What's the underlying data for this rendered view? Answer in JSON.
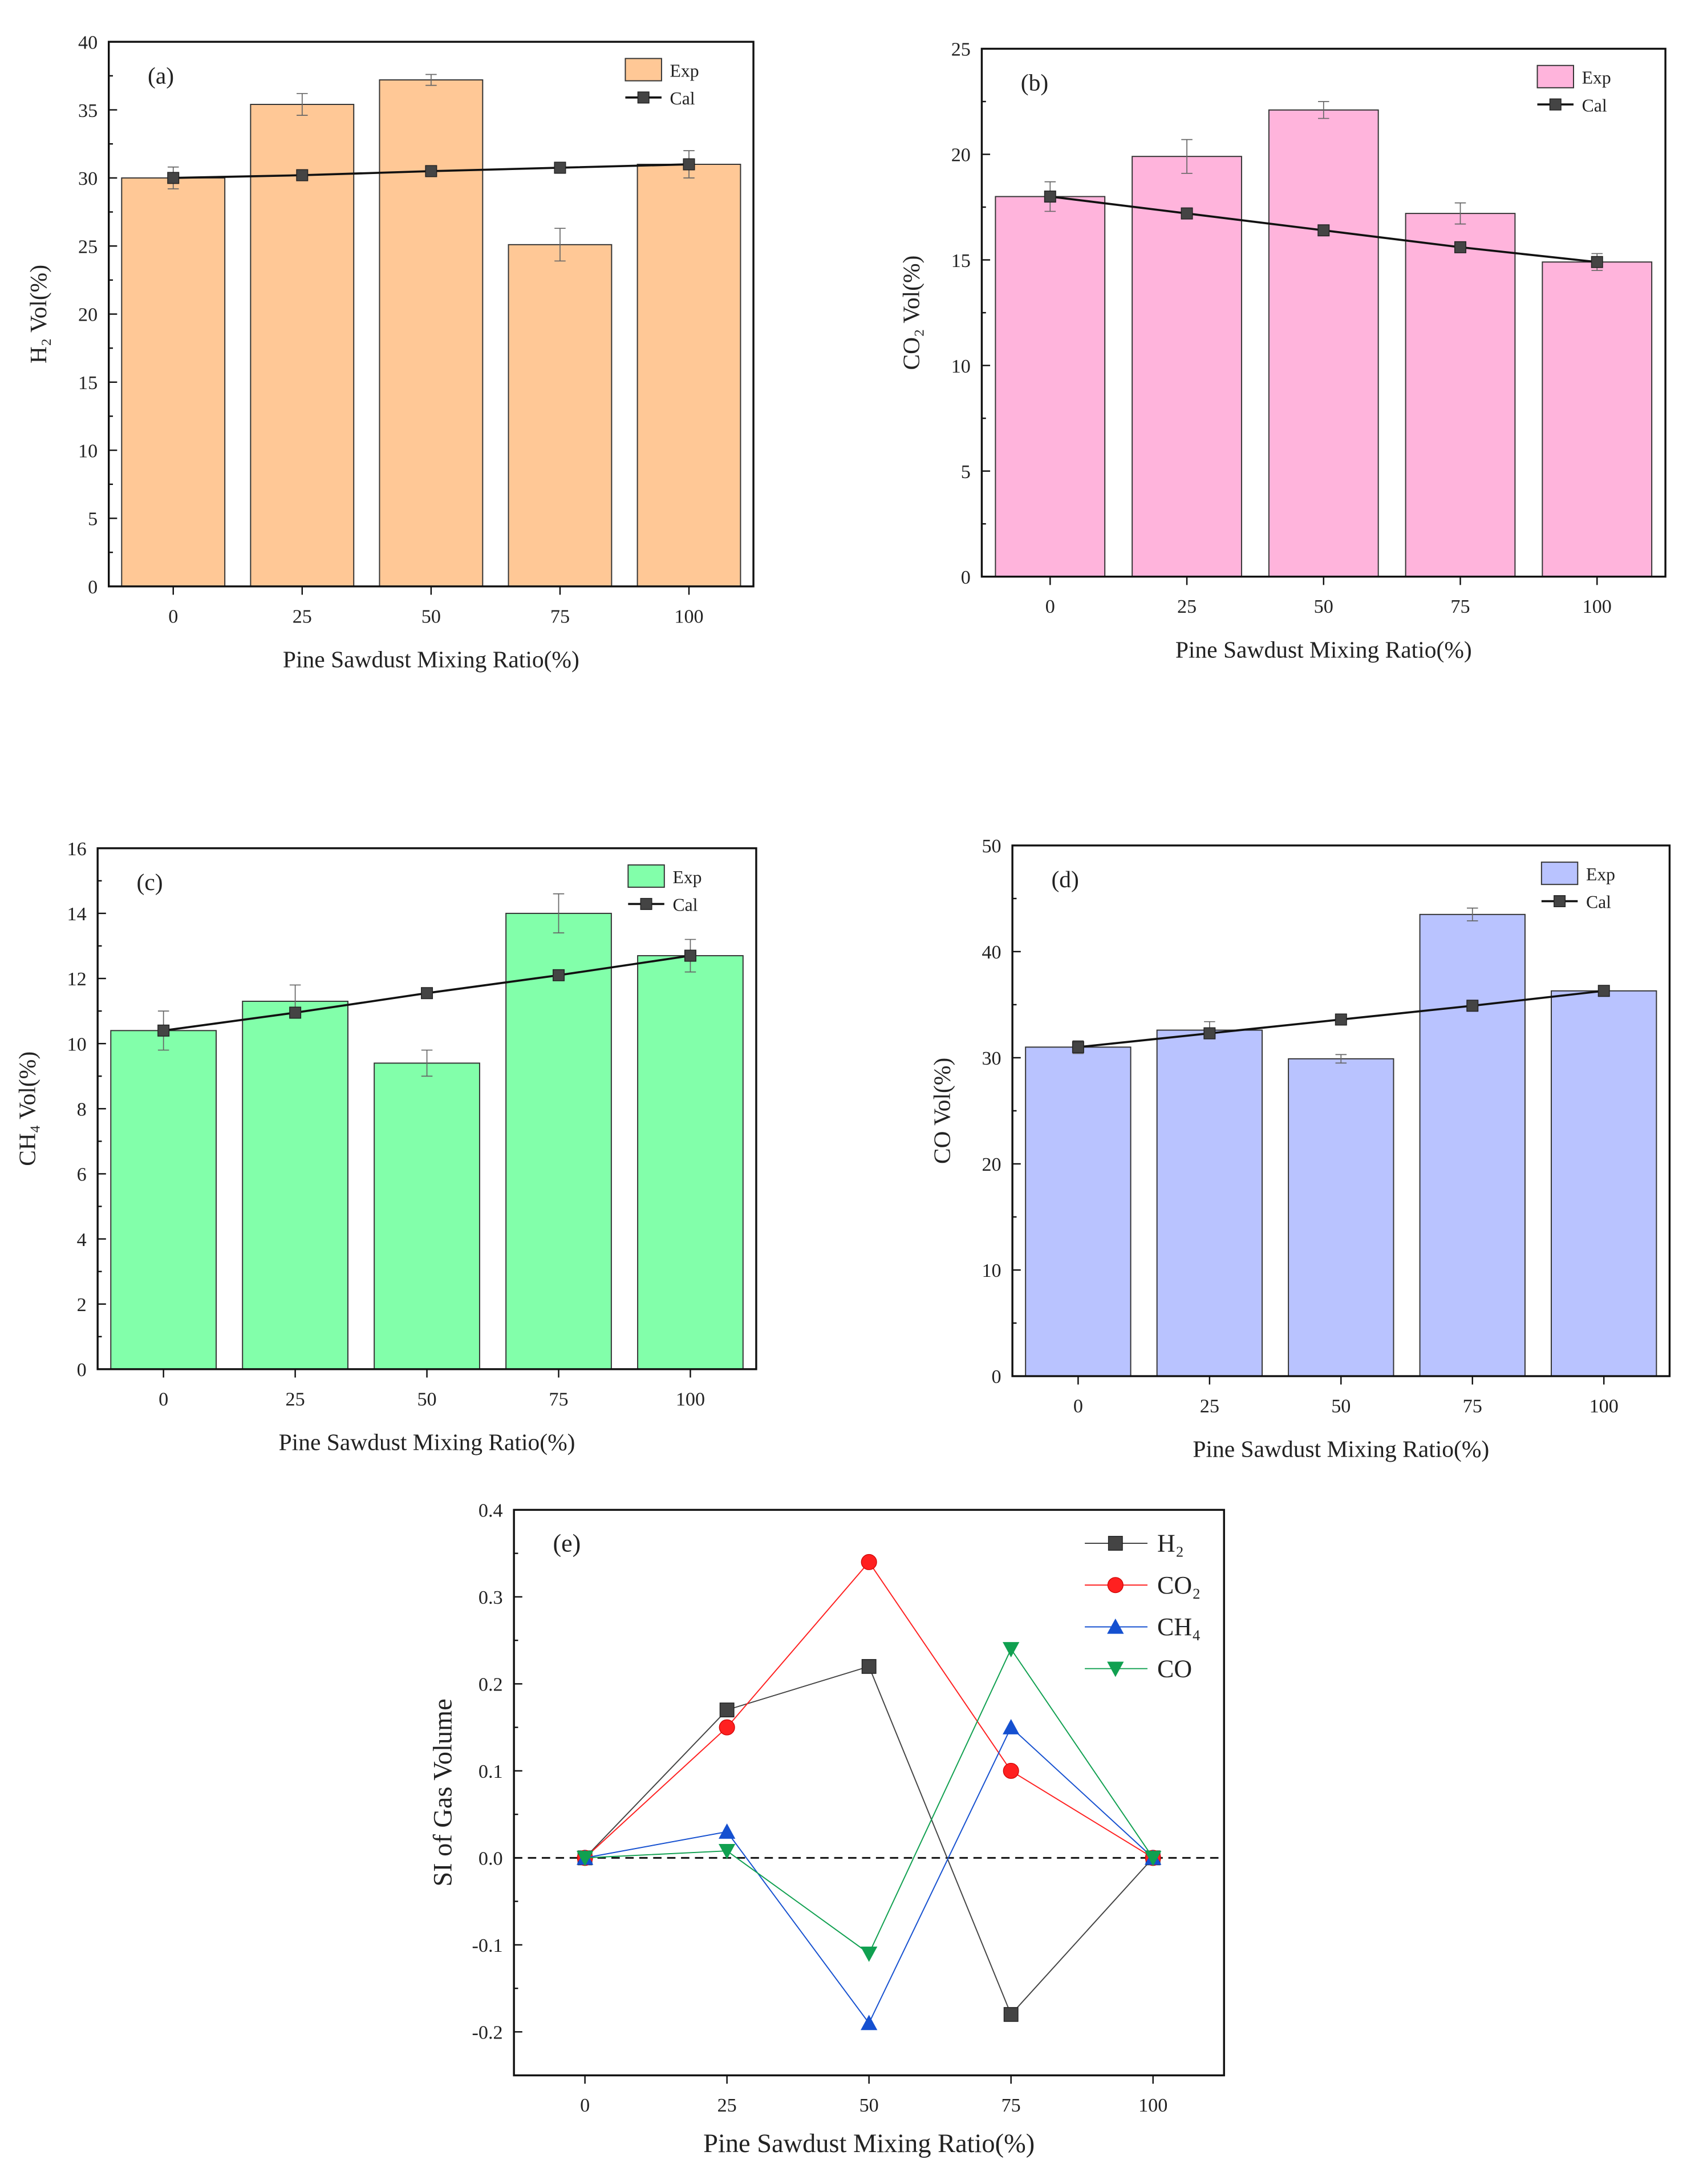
{
  "chart_data": [
    {
      "type": "bar",
      "panel": "(a)",
      "categories": [
        "0",
        "25",
        "50",
        "75",
        "100"
      ],
      "x": [
        0,
        25,
        50,
        75,
        100
      ],
      "xlabel": "Pine Sawdust Mixing Ratio(%)",
      "ylabel": "H₂ Vol(%)",
      "ylim": [
        0,
        40
      ],
      "yticks": [
        0,
        5,
        10,
        15,
        20,
        25,
        30,
        35,
        40
      ],
      "color": "#FFC896",
      "series": [
        {
          "name": "Exp",
          "kind": "bar",
          "values": [
            30.0,
            35.4,
            37.2,
            25.1,
            31.0
          ],
          "errors": [
            0.8,
            0.8,
            0.4,
            1.2,
            1.0
          ]
        },
        {
          "name": "Cal",
          "kind": "line",
          "values": [
            30.0,
            30.2,
            30.5,
            30.75,
            31.0
          ]
        }
      ]
    },
    {
      "type": "bar",
      "panel": "(b)",
      "categories": [
        "0",
        "25",
        "50",
        "75",
        "100"
      ],
      "x": [
        0,
        25,
        50,
        75,
        100
      ],
      "xlabel": "Pine Sawdust Mixing Ratio(%)",
      "ylabel": "CO₂ Vol(%)",
      "ylim": [
        0,
        25
      ],
      "yticks": [
        0,
        5,
        10,
        15,
        20,
        25
      ],
      "color": "#FFB4DC",
      "series": [
        {
          "name": "Exp",
          "kind": "bar",
          "values": [
            18.0,
            19.9,
            22.1,
            17.2,
            14.9
          ],
          "errors": [
            0.7,
            0.8,
            0.4,
            0.5,
            0.4
          ]
        },
        {
          "name": "Cal",
          "kind": "line",
          "values": [
            18.0,
            17.2,
            16.4,
            15.6,
            14.9
          ]
        }
      ]
    },
    {
      "type": "bar",
      "panel": "(c)",
      "categories": [
        "0",
        "25",
        "50",
        "75",
        "100"
      ],
      "x": [
        0,
        25,
        50,
        75,
        100
      ],
      "xlabel": "Pine Sawdust Mixing Ratio(%)",
      "ylabel": "CH₄ Vol(%)",
      "ylim": [
        0,
        16
      ],
      "yticks": [
        0,
        2,
        4,
        6,
        8,
        10,
        12,
        14,
        16
      ],
      "color": "#82FFAA",
      "series": [
        {
          "name": "Exp",
          "kind": "bar",
          "values": [
            10.4,
            11.3,
            9.4,
            14.0,
            12.7
          ],
          "errors": [
            0.6,
            0.5,
            0.4,
            0.6,
            0.5
          ]
        },
        {
          "name": "Cal",
          "kind": "line",
          "values": [
            10.4,
            10.95,
            11.55,
            12.1,
            12.7
          ]
        }
      ]
    },
    {
      "type": "bar",
      "panel": "(d)",
      "categories": [
        "0",
        "25",
        "50",
        "75",
        "100"
      ],
      "x": [
        0,
        25,
        50,
        75,
        100
      ],
      "xlabel": "Pine Sawdust Mixing Ratio(%)",
      "ylabel": "CO Vol(%)",
      "ylim": [
        0,
        50
      ],
      "yticks": [
        0,
        10,
        20,
        30,
        40,
        50
      ],
      "color": "#B9C3FF",
      "series": [
        {
          "name": "Exp",
          "kind": "bar",
          "values": [
            31.0,
            32.6,
            29.9,
            43.5,
            36.3
          ],
          "errors": [
            0.6,
            0.8,
            0.4,
            0.6,
            0.5
          ]
        },
        {
          "name": "Cal",
          "kind": "line",
          "values": [
            31.0,
            32.3,
            33.6,
            34.9,
            36.3
          ]
        }
      ]
    },
    {
      "type": "line",
      "panel": "(e)",
      "x": [
        0,
        25,
        50,
        75,
        100
      ],
      "categories": [
        "0",
        "25",
        "50",
        "75",
        "100"
      ],
      "xlabel": "Pine Sawdust Mixing Ratio(%)",
      "ylabel": "SI of Gas Volume",
      "ylim": [
        -0.25,
        0.4
      ],
      "yticks": [
        "-0.2",
        "-0.1",
        "0.0",
        "0.1",
        "0.2",
        "0.3",
        "0.4"
      ],
      "reference_line": 0,
      "series": [
        {
          "name": "H₂",
          "marker": "square",
          "color": "#444444",
          "values": [
            0,
            0.17,
            0.22,
            -0.18,
            0
          ]
        },
        {
          "name": "CO₂",
          "marker": "circle",
          "color": "#FF2020",
          "values": [
            0,
            0.15,
            0.34,
            0.1,
            0
          ]
        },
        {
          "name": "CH₄",
          "marker": "triangle-up",
          "color": "#1550D0",
          "values": [
            0,
            0.03,
            -0.19,
            0.15,
            0
          ]
        },
        {
          "name": "CO",
          "marker": "triangle-down",
          "color": "#10A050",
          "values": [
            0,
            0.008,
            -0.11,
            0.24,
            0
          ]
        }
      ]
    }
  ]
}
